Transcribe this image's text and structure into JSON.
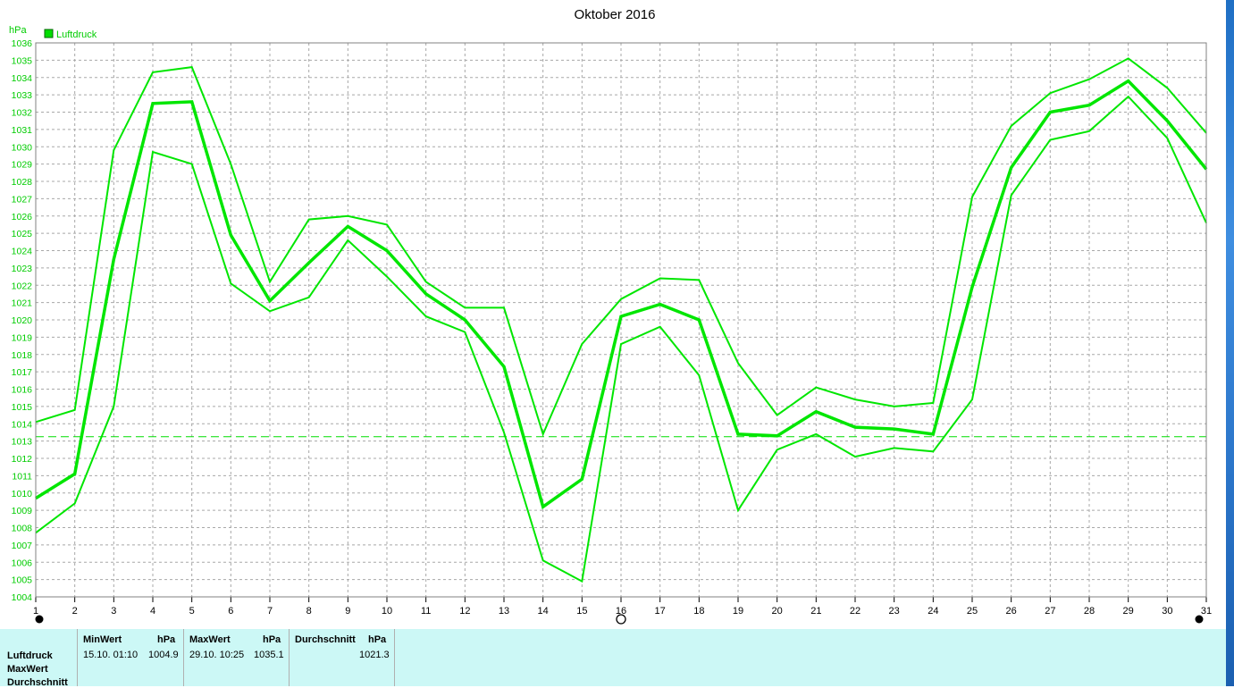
{
  "chart_data": {
    "type": "line",
    "title": "Oktober 2016",
    "ylabel": "hPa",
    "legend": {
      "label": "Luftdruck",
      "color": "#00dd00",
      "placement": "top-left"
    },
    "ylim": [
      1004,
      1036
    ],
    "yticks": [
      1004,
      1005,
      1006,
      1007,
      1008,
      1009,
      1010,
      1011,
      1012,
      1013,
      1014,
      1015,
      1016,
      1017,
      1018,
      1019,
      1020,
      1021,
      1022,
      1023,
      1024,
      1025,
      1026,
      1027,
      1028,
      1029,
      1030,
      1031,
      1032,
      1033,
      1034,
      1035,
      1036
    ],
    "x": [
      1,
      2,
      3,
      4,
      5,
      6,
      7,
      8,
      9,
      10,
      11,
      12,
      13,
      14,
      15,
      16,
      17,
      18,
      19,
      20,
      21,
      22,
      23,
      24,
      25,
      26,
      27,
      28,
      29,
      30,
      31
    ],
    "xticks": [
      "1",
      "2",
      "3",
      "4",
      "5",
      "6",
      "7",
      "8",
      "9",
      "10",
      "11",
      "12",
      "13",
      "14",
      "15",
      "16",
      "17",
      "18",
      "19",
      "20",
      "21",
      "22",
      "23",
      "24",
      "25",
      "26",
      "27",
      "28",
      "29",
      "30",
      "31"
    ],
    "grid": true,
    "reference_line": 1013.25,
    "series": [
      {
        "values": [
          1014.1,
          1014.8,
          1029.8,
          1034.3,
          1034.6,
          1029.0,
          1022.2,
          1025.8,
          1026.0,
          1025.5,
          1022.2,
          1020.7,
          1020.7,
          1013.4,
          1018.6,
          1021.2,
          1022.4,
          1022.3,
          1017.5,
          1014.5,
          1016.1,
          1015.4,
          1015.0,
          1015.2,
          1027.1,
          1031.2,
          1033.1,
          1033.9,
          1035.1,
          1033.4,
          1030.8
        ]
      },
      {
        "values": [
          1009.7,
          1011.1,
          1023.5,
          1032.5,
          1032.6,
          1024.9,
          1021.1,
          1023.3,
          1025.4,
          1024.0,
          1021.5,
          1020.0,
          1017.3,
          1009.2,
          1010.8,
          1020.2,
          1020.9,
          1020.0,
          1013.4,
          1013.3,
          1014.7,
          1013.8,
          1013.7,
          1013.4,
          1021.9,
          1028.8,
          1032.0,
          1032.4,
          1033.8,
          1031.5,
          1028.7
        ]
      },
      {
        "values": [
          1007.7,
          1009.4,
          1015.0,
          1029.7,
          1029.0,
          1022.1,
          1020.5,
          1021.3,
          1024.6,
          1022.5,
          1020.2,
          1019.3,
          1013.5,
          1006.1,
          1004.9,
          1018.6,
          1019.6,
          1016.8,
          1009.0,
          1012.5,
          1013.4,
          1012.1,
          1012.6,
          1012.4,
          1015.4,
          1027.2,
          1030.4,
          1030.9,
          1032.9,
          1030.5,
          1025.6
        ]
      }
    ]
  },
  "stats": {
    "row_labels": [
      "Luftdruck",
      "MaxWert",
      "Durchschnitt"
    ],
    "min": {
      "header": "MinWert",
      "unit": "hPa",
      "datetime": "15.10.  01:10",
      "value": "1004.9"
    },
    "max": {
      "header": "MaxWert",
      "unit": "hPa",
      "datetime": "29.10.  10:25",
      "value": "1035.1"
    },
    "avg": {
      "header": "Durchschnitt",
      "unit": "hPa",
      "value": "1021.3"
    }
  }
}
